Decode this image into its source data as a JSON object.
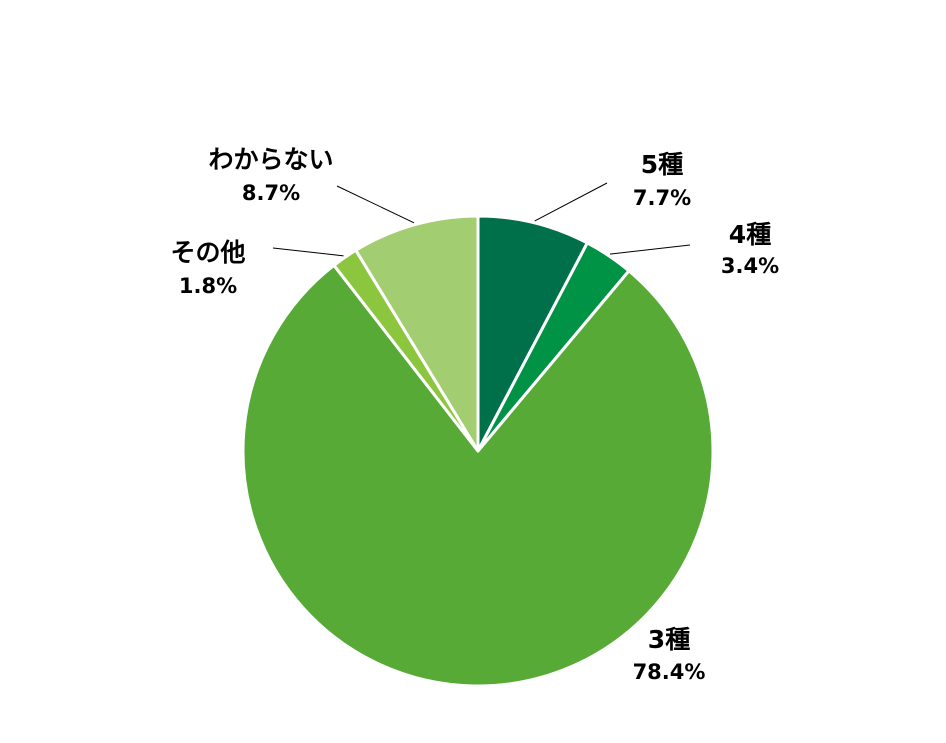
{
  "chart_data": {
    "type": "pie",
    "slices": [
      {
        "label": "5種",
        "value": 7.7,
        "display": "7.7%",
        "color": "#00704A"
      },
      {
        "label": "4種",
        "value": 3.4,
        "display": "3.4%",
        "color": "#009245"
      },
      {
        "label": "3種",
        "value": 78.4,
        "display": "78.4%",
        "color": "#56AA35"
      },
      {
        "label": "その他",
        "value": 1.8,
        "display": "1.8%",
        "color": "#8CC63F"
      },
      {
        "label": "わからない",
        "value": 8.7,
        "display": "8.7%",
        "color": "#A2CD70"
      }
    ],
    "start_angle": "12 o'clock",
    "direction": "clockwise",
    "slice_border_color": "#FFFFFF",
    "leader_line_color": "#000000"
  }
}
